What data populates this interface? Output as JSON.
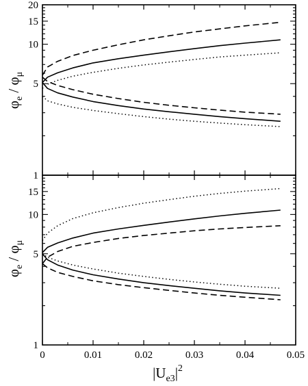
{
  "chart_data": [
    {
      "type": "line",
      "panel": "top",
      "xlabel": "",
      "ylabel_main": "φ",
      "ylabel_sub1": "e",
      "ylabel_sep": " / φ",
      "ylabel_sub2": "μ",
      "yscale": "log",
      "xlim": [
        0,
        0.05
      ],
      "ylim": [
        1,
        20
      ],
      "grid": false,
      "x_ticks": [
        0,
        0.01,
        0.02,
        0.03,
        0.04,
        0.05
      ],
      "x_tick_labels": [],
      "y_ticks": [
        1,
        5,
        10,
        15,
        20
      ],
      "y_tick_labels": [
        "1",
        "5",
        "10",
        "15",
        "20"
      ],
      "series": [
        {
          "style": "solid",
          "x": [
            0,
            0.001,
            0.003,
            0.006,
            0.01,
            0.015,
            0.02,
            0.025,
            0.03,
            0.035,
            0.04,
            0.047
          ],
          "values": [
            5.1,
            5.6,
            6.05,
            6.6,
            7.2,
            7.75,
            8.25,
            8.75,
            9.25,
            9.75,
            10.2,
            10.8
          ]
        },
        {
          "style": "solid",
          "x": [
            0,
            0.001,
            0.003,
            0.006,
            0.01,
            0.015,
            0.02,
            0.025,
            0.03,
            0.035,
            0.04,
            0.047
          ],
          "values": [
            5.1,
            4.6,
            4.25,
            3.95,
            3.65,
            3.4,
            3.2,
            3.05,
            2.92,
            2.8,
            2.7,
            2.58
          ]
        },
        {
          "style": "dashed",
          "x": [
            0,
            0.001,
            0.003,
            0.006,
            0.01,
            0.015,
            0.02,
            0.025,
            0.03,
            0.035,
            0.04,
            0.047
          ],
          "values": [
            5.8,
            6.7,
            7.4,
            8.2,
            9.0,
            9.9,
            10.8,
            11.6,
            12.4,
            13.1,
            13.8,
            14.7
          ]
        },
        {
          "style": "dashed",
          "x": [
            0,
            0.001,
            0.003,
            0.006,
            0.01,
            0.015,
            0.02,
            0.025,
            0.03,
            0.035,
            0.04,
            0.047
          ],
          "values": [
            5.6,
            5.2,
            4.85,
            4.5,
            4.15,
            3.85,
            3.6,
            3.42,
            3.27,
            3.14,
            3.03,
            2.92
          ]
        },
        {
          "style": "dotted",
          "x": [
            0,
            0.001,
            0.003,
            0.006,
            0.01,
            0.015,
            0.02,
            0.025,
            0.03,
            0.035,
            0.04,
            0.047
          ],
          "values": [
            4.6,
            4.95,
            5.3,
            5.7,
            6.1,
            6.55,
            6.95,
            7.3,
            7.65,
            8.0,
            8.25,
            8.6
          ]
        },
        {
          "style": "dotted",
          "x": [
            0,
            0.001,
            0.003,
            0.006,
            0.01,
            0.015,
            0.02,
            0.025,
            0.03,
            0.035,
            0.04,
            0.047
          ],
          "values": [
            4.0,
            3.7,
            3.5,
            3.3,
            3.12,
            2.95,
            2.8,
            2.68,
            2.58,
            2.5,
            2.43,
            2.35
          ]
        }
      ]
    },
    {
      "type": "line",
      "panel": "bottom",
      "xlabel_main": "|U",
      "xlabel_sub": "e3",
      "xlabel_end": "|",
      "xlabel_sup": "2",
      "ylabel_main": "φ",
      "ylabel_sub1": "e",
      "ylabel_sep": " / φ",
      "ylabel_sub2": "μ",
      "yscale": "log",
      "xlim": [
        0,
        0.05
      ],
      "ylim": [
        1,
        20
      ],
      "grid": false,
      "x_ticks": [
        0,
        0.01,
        0.02,
        0.03,
        0.04,
        0.05
      ],
      "x_tick_labels": [
        "0",
        "0.01",
        "0.02",
        "0.03",
        "0.04",
        "0.05"
      ],
      "y_ticks": [
        1,
        5,
        10,
        15
      ],
      "y_tick_labels": [
        "1",
        "5",
        "10",
        "15"
      ],
      "series": [
        {
          "style": "solid",
          "x": [
            0,
            0.001,
            0.003,
            0.006,
            0.01,
            0.015,
            0.02,
            0.025,
            0.03,
            0.035,
            0.04,
            0.047
          ],
          "values": [
            5.1,
            5.6,
            6.05,
            6.6,
            7.2,
            7.75,
            8.25,
            8.75,
            9.25,
            9.75,
            10.2,
            10.8
          ]
        },
        {
          "style": "solid",
          "x": [
            0,
            0.001,
            0.003,
            0.006,
            0.01,
            0.015,
            0.02,
            0.025,
            0.03,
            0.035,
            0.04,
            0.047
          ],
          "values": [
            5.0,
            4.5,
            4.1,
            3.75,
            3.45,
            3.2,
            3.0,
            2.85,
            2.72,
            2.6,
            2.5,
            2.4
          ]
        },
        {
          "style": "dashed",
          "x": [
            0,
            0.001,
            0.003,
            0.006,
            0.01,
            0.015,
            0.02,
            0.025,
            0.03,
            0.035,
            0.04,
            0.047
          ],
          "values": [
            4.2,
            4.7,
            5.2,
            5.7,
            6.1,
            6.55,
            6.9,
            7.2,
            7.5,
            7.75,
            7.95,
            8.2
          ]
        },
        {
          "style": "dashed",
          "x": [
            0,
            0.001,
            0.003,
            0.006,
            0.01,
            0.015,
            0.02,
            0.025,
            0.03,
            0.035,
            0.04,
            0.047
          ],
          "values": [
            4.2,
            3.9,
            3.6,
            3.35,
            3.1,
            2.9,
            2.75,
            2.62,
            2.5,
            2.4,
            2.32,
            2.22
          ]
        },
        {
          "style": "dotted",
          "x": [
            0,
            0.001,
            0.003,
            0.006,
            0.01,
            0.015,
            0.02,
            0.025,
            0.03,
            0.035,
            0.04,
            0.047
          ],
          "values": [
            6.3,
            7.2,
            8.2,
            9.3,
            10.3,
            11.3,
            12.2,
            13.0,
            13.8,
            14.5,
            15.1,
            15.8
          ]
        },
        {
          "style": "dotted",
          "x": [
            0,
            0.001,
            0.003,
            0.006,
            0.01,
            0.015,
            0.02,
            0.025,
            0.03,
            0.035,
            0.04,
            0.047
          ],
          "values": [
            5.0,
            4.7,
            4.4,
            4.1,
            3.82,
            3.55,
            3.35,
            3.18,
            3.04,
            2.92,
            2.82,
            2.72
          ]
        }
      ]
    }
  ]
}
